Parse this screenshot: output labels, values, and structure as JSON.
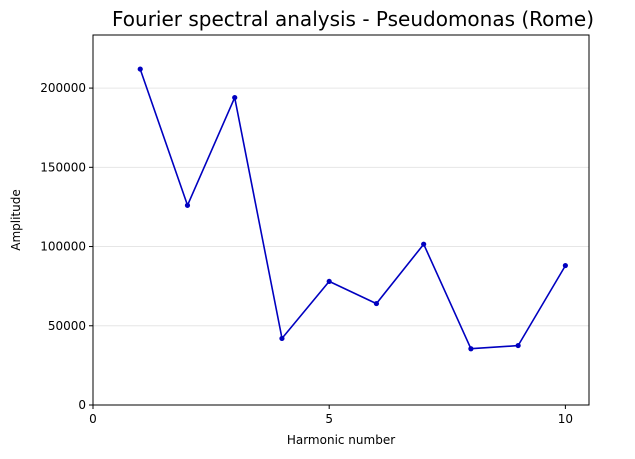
{
  "chart_data": {
    "type": "line",
    "title": "Fourier spectral analysis - Pseudomonas (Rome)",
    "xlabel": "Harmonic number",
    "ylabel": "Amplitude",
    "x": [
      1,
      2,
      3,
      4,
      5,
      6,
      7,
      8,
      9,
      10
    ],
    "series": [
      {
        "values": [
          212000,
          126000,
          194000,
          42000,
          78000,
          64000,
          101500,
          35500,
          37500,
          88000
        ],
        "color": "#0000c0"
      }
    ],
    "xlim": [
      0,
      10.5
    ],
    "ylim": [
      0,
      233500
    ],
    "xticks": [
      0,
      5,
      10
    ],
    "xtick_labels": [
      "0",
      "5",
      "10"
    ],
    "yticks": [
      0,
      50000,
      100000,
      150000,
      200000
    ],
    "ytick_labels": [
      "0",
      "50000",
      "100000",
      "150000",
      "200000"
    ],
    "grid": "horizontal",
    "legend": "none"
  }
}
